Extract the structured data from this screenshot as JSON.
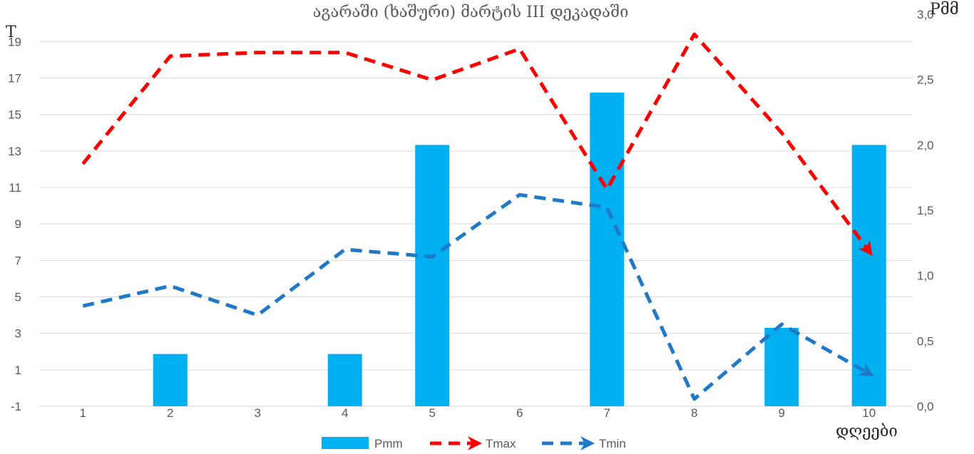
{
  "chart_data": {
    "type": "bar+line",
    "title": "აგარაში (ხაშური)  მარტის III დეკადაში",
    "xlabel": "დღეები",
    "ylabel_left": "T",
    "ylabel_right": "Pმმ",
    "categories": [
      "1",
      "2",
      "3",
      "4",
      "5",
      "6",
      "7",
      "8",
      "9",
      "10"
    ],
    "y_left": {
      "min": -1,
      "max": 20.5,
      "ticks": [
        "19",
        "17",
        "15",
        "13",
        "11",
        "9",
        "7",
        "5",
        "3",
        "1",
        "-1"
      ]
    },
    "y_right": {
      "min": 0.0,
      "max": 3.0,
      "ticks": [
        "3,0",
        "2,5",
        "2,0",
        "1,5",
        "1,0",
        "0,5",
        "0,0"
      ]
    },
    "grid": true,
    "legend_position": "bottom",
    "series": [
      {
        "name": "Pmm",
        "kind": "bar",
        "axis": "right",
        "color": "#00B0F0",
        "values": [
          0,
          0.4,
          0,
          0.4,
          2.0,
          0,
          2.4,
          0,
          0.6,
          2.0
        ]
      },
      {
        "name": "Tmax",
        "kind": "line",
        "axis": "left",
        "color": "#FF0000",
        "style": "dashed-arrow",
        "values": [
          12.3,
          18.2,
          18.4,
          18.4,
          16.9,
          18.6,
          10.9,
          19.4,
          14.0,
          7.5
        ]
      },
      {
        "name": "Tmin",
        "kind": "line",
        "axis": "left",
        "color": "#1F78C8",
        "style": "dashed-arrow",
        "values": [
          4.5,
          5.6,
          4.0,
          7.6,
          7.2,
          10.6,
          9.9,
          -0.6,
          3.5,
          0.8
        ]
      }
    ]
  }
}
